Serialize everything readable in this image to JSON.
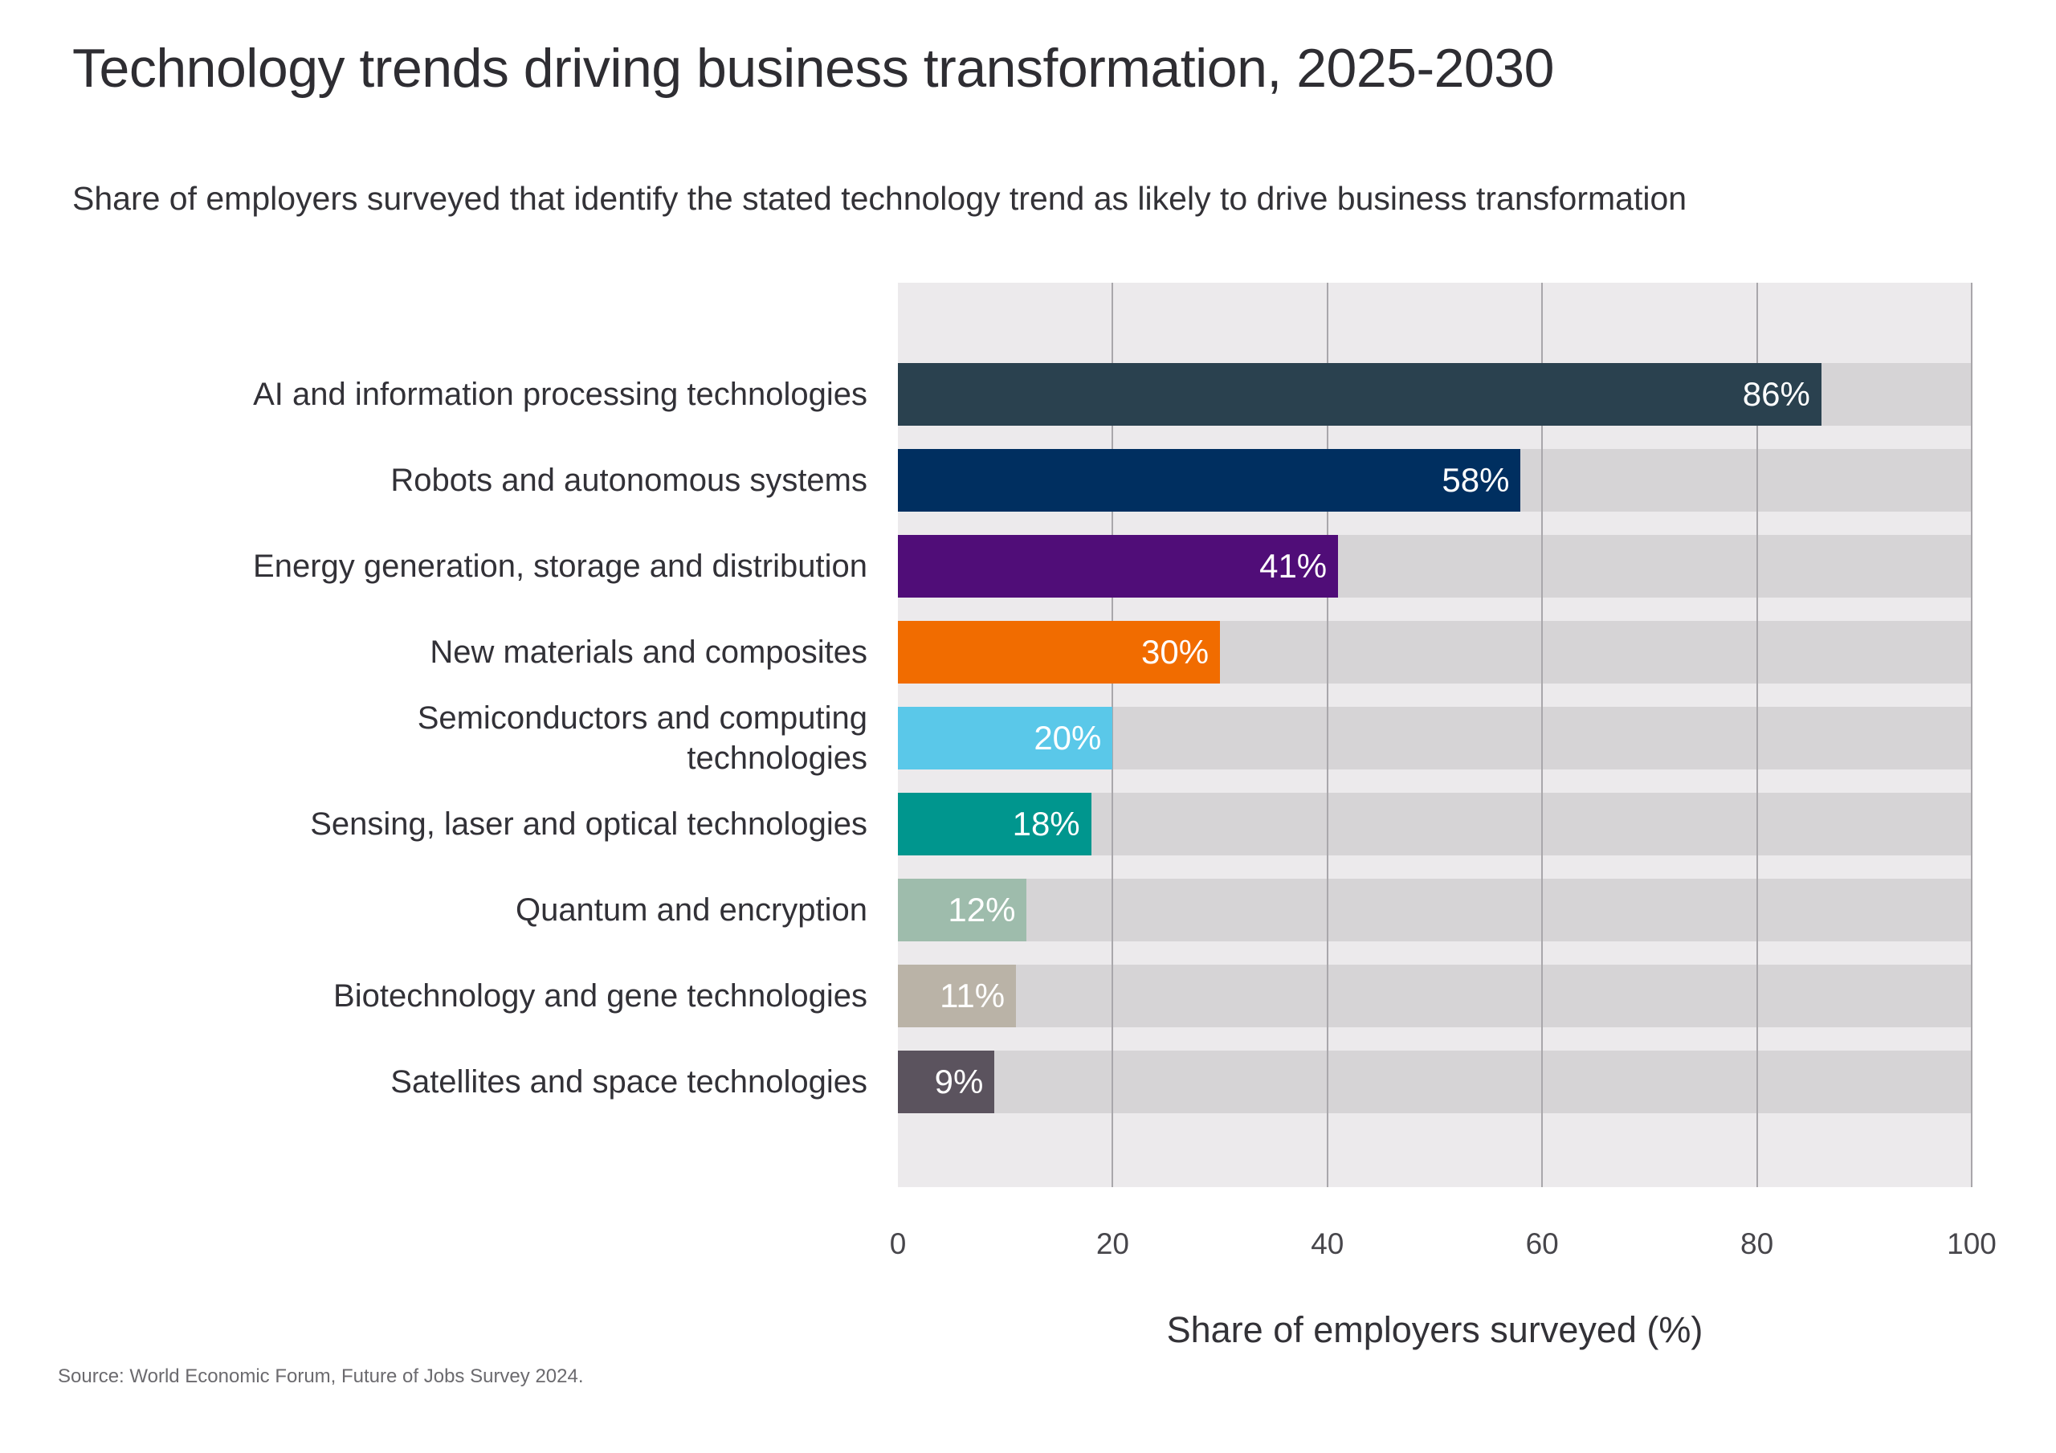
{
  "title": "Technology trends driving business transformation, 2025-2030",
  "subtitle": "Share of employers surveyed that identify the stated technology trend as likely to drive business transformation",
  "source": "Source: World Economic Forum, Future of Jobs Survey 2024.",
  "chart_data": {
    "type": "bar",
    "orientation": "horizontal",
    "title": "Technology trends driving business transformation, 2025-2030",
    "subtitle": "Share of employers surveyed that identify the stated technology trend as likely to drive business transformation",
    "xlabel": "Share of employers surveyed (%)",
    "xlim": [
      0,
      100
    ],
    "x_ticks": [
      "0",
      "20",
      "40",
      "60",
      "80",
      "100"
    ],
    "grid": true,
    "legend": false,
    "categories": [
      "AI and information processing technologies",
      "Robots and autonomous systems",
      "Energy generation, storage and distribution",
      "New materials and composites",
      "Semiconductors and computing\ntechnologies",
      "Sensing, laser and optical technologies",
      "Quantum and encryption",
      "Biotechnology and gene technologies",
      "Satellites and space technologies"
    ],
    "values": [
      86,
      58,
      41,
      30,
      20,
      18,
      12,
      11,
      9
    ],
    "value_labels": [
      "86%",
      "58%",
      "41%",
      "30%",
      "20%",
      "18%",
      "12%",
      "11%",
      "9%"
    ],
    "bar_colors": [
      "#2a414f",
      "#002f60",
      "#500d78",
      "#f16c00",
      "#5ac8e9",
      "#00968e",
      "#9ebcac",
      "#bab3a7",
      "#5b535e"
    ],
    "colors": {
      "plot_background": "#eceaec",
      "row_track": "#d6d4d6",
      "gridline": "#a9a7ab",
      "value_label_text": "#ffffff"
    }
  }
}
